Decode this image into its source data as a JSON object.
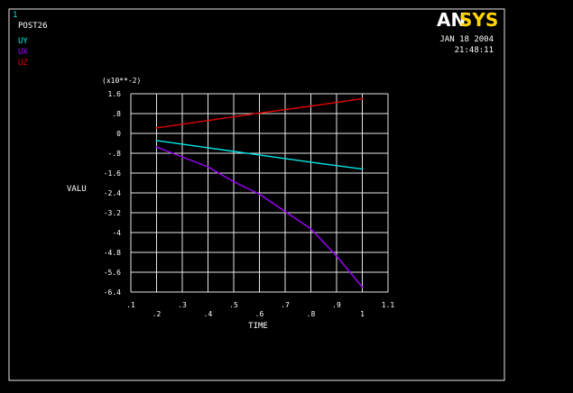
{
  "window_number": "1",
  "module": "POST26",
  "legend": [
    {
      "name": "UY",
      "color": "#00e5e5"
    },
    {
      "name": "UX",
      "color": "#a100ff"
    },
    {
      "name": "UZ",
      "color": "#e00000"
    }
  ],
  "logo": {
    "prefix": "AN",
    "suffix": "SYS",
    "prefix_color": "#ffffff",
    "suffix_color": "#ffd400"
  },
  "date": "JAN 18 2004",
  "time": "21:48:11",
  "colors": {
    "background": "#000000",
    "frame": "#e6e6e6",
    "grid": "#e6e6e6",
    "text": "#ffffff"
  },
  "chart_data": {
    "type": "line",
    "title": "",
    "xlabel": "TIME",
    "ylabel": "VALU",
    "y_multiplier": "(x10**-2)",
    "xlim": [
      0.1,
      1.1
    ],
    "ylim": [
      -6.4,
      1.6
    ],
    "x_ticks": [
      0.1,
      0.2,
      0.3,
      0.4,
      0.5,
      0.6,
      0.7,
      0.8,
      0.9,
      1.0,
      1.1
    ],
    "x_tick_labels": [
      ".1",
      ".2",
      ".3",
      ".4",
      ".5",
      ".6",
      ".7",
      ".8",
      ".9",
      "1",
      "1.1"
    ],
    "y_ticks": [
      1.6,
      0.8,
      0,
      -0.8,
      -1.6,
      -2.4,
      -3.2,
      -4,
      -4.8,
      -5.6,
      -6.4
    ],
    "y_tick_labels": [
      "1.6",
      ".8",
      "0",
      "-.8",
      "-1.6",
      "-2.4",
      "-3.2",
      "-4",
      "-4.8",
      "-5.6",
      "-6.4"
    ],
    "grid": true,
    "series": [
      {
        "name": "UY",
        "color": "#00e5e5",
        "x": [
          0.2,
          0.4,
          0.6,
          0.8,
          1.0
        ],
        "y": [
          -0.29,
          -0.58,
          -0.87,
          -1.16,
          -1.44
        ]
      },
      {
        "name": "UX",
        "color": "#a100ff",
        "x": [
          0.2,
          0.3,
          0.4,
          0.5,
          0.6,
          0.7,
          0.8,
          0.9,
          1.0
        ],
        "y": [
          -0.55,
          -0.95,
          -1.35,
          -1.95,
          -2.45,
          -3.15,
          -3.85,
          -4.95,
          -6.2
        ]
      },
      {
        "name": "UZ",
        "color": "#e00000",
        "x": [
          0.2,
          0.4,
          0.6,
          0.8,
          1.0
        ],
        "y": [
          0.22,
          0.52,
          0.82,
          1.1,
          1.4
        ]
      }
    ]
  }
}
